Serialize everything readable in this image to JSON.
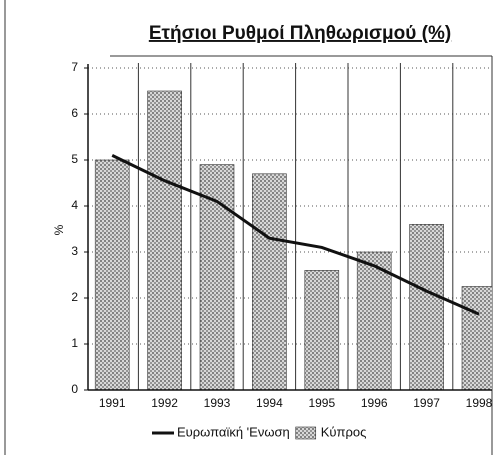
{
  "chart_data": {
    "type": "bar",
    "title": "Ετήσιοι Ρυθμοί Πληθωρισμού (%)",
    "y_label": "%",
    "categories": [
      "1991",
      "1992",
      "1993",
      "1994",
      "1995",
      "1996",
      "1997",
      "1998"
    ],
    "series": [
      {
        "name": "Ευρωπαϊκή 'Ενωση",
        "type": "line",
        "color": "#111111",
        "values": [
          5.1,
          4.55,
          4.1,
          3.3,
          3.1,
          2.7,
          2.15,
          1.65
        ]
      },
      {
        "name": "Κύπρος",
        "type": "bar",
        "color": "#9a9a9a",
        "values": [
          5.0,
          6.5,
          4.9,
          4.7,
          2.6,
          3.0,
          3.6,
          2.25
        ]
      }
    ],
    "ylim": [
      0,
      7
    ],
    "yticks": [
      0,
      1,
      2,
      3,
      4,
      5,
      6,
      7
    ],
    "grid": true,
    "legend": "bottom"
  }
}
